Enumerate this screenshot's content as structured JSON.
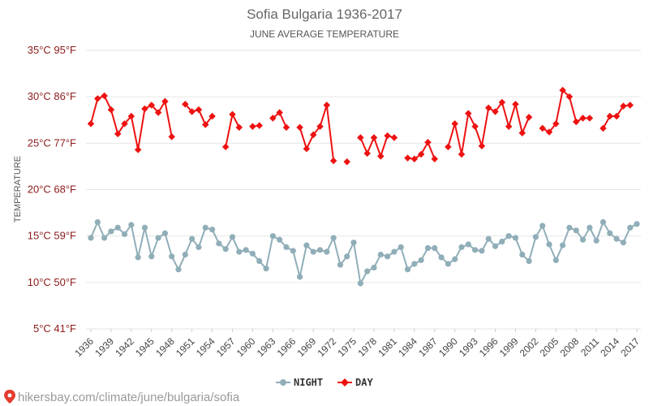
{
  "page": {
    "source_text": "hikersbay.com/climate/june/bulgaria/sofia"
  },
  "colors": {
    "day": "#ee1111",
    "night": "#90aeb8",
    "grid": "#e6e6e6",
    "ytick": "#8b1a1a",
    "pin": "#e33b2e"
  },
  "legend": [
    {
      "name": "NIGHT",
      "color": "#90aeb8",
      "marker": "circle"
    },
    {
      "name": "DAY",
      "color": "#ee1111",
      "marker": "diamond"
    }
  ],
  "chart_data": {
    "type": "line",
    "title": "Sofia Bulgaria 1936-2017",
    "subtitle": "JUNE AVERAGE TEMPERATURE",
    "ylabel": "TEMPERATURE",
    "xlabel": "",
    "ylim": [
      5,
      35
    ],
    "grid": true,
    "legend_position": "bottom-center",
    "y_ticks": [
      {
        "value": 5,
        "label": "5°C 41°F"
      },
      {
        "value": 10,
        "label": "10°C 50°F"
      },
      {
        "value": 15,
        "label": "15°C 59°F"
      },
      {
        "value": 20,
        "label": "20°C 68°F"
      },
      {
        "value": 25,
        "label": "25°C 77°F"
      },
      {
        "value": 30,
        "label": "30°C 86°F"
      },
      {
        "value": 35,
        "label": "35°C 95°F"
      }
    ],
    "x_tick_labels": [
      "1936",
      "1939",
      "1942",
      "1945",
      "1948",
      "1951",
      "1954",
      "1957",
      "1960",
      "1963",
      "1966",
      "1969",
      "1972",
      "1975",
      "1978",
      "1981",
      "1984",
      "1987",
      "1990",
      "1993",
      "1996",
      "1999",
      "2002",
      "2005",
      "2008",
      "2011",
      "2014",
      "2017"
    ],
    "x": [
      1936,
      1937,
      1938,
      1939,
      1940,
      1941,
      1942,
      1943,
      1944,
      1945,
      1946,
      1947,
      1948,
      1949,
      1950,
      1951,
      1952,
      1953,
      1954,
      1955,
      1956,
      1957,
      1958,
      1959,
      1960,
      1961,
      1962,
      1963,
      1964,
      1965,
      1966,
      1967,
      1968,
      1969,
      1970,
      1971,
      1972,
      1973,
      1974,
      1975,
      1976,
      1977,
      1978,
      1979,
      1980,
      1981,
      1982,
      1983,
      1984,
      1985,
      1986,
      1987,
      1988,
      1989,
      1990,
      1991,
      1992,
      1993,
      1994,
      1995,
      1996,
      1997,
      1998,
      1999,
      2000,
      2001,
      2002,
      2003,
      2004,
      2005,
      2006,
      2007,
      2008,
      2009,
      2010,
      2011,
      2012,
      2013,
      2014,
      2015,
      2016,
      2017
    ],
    "series": [
      {
        "name": "DAY",
        "color": "#ee1111",
        "marker": "diamond",
        "values": [
          27.1,
          29.8,
          30.1,
          28.6,
          26.0,
          27.1,
          27.9,
          24.3,
          28.7,
          29.1,
          28.3,
          29.5,
          25.7,
          null,
          29.2,
          28.4,
          28.6,
          27.0,
          27.9,
          null,
          24.6,
          28.1,
          26.7,
          null,
          26.8,
          26.9,
          null,
          27.7,
          28.3,
          26.7,
          null,
          26.7,
          24.4,
          25.9,
          26.8,
          29.1,
          23.1,
          null,
          23.0,
          null,
          25.6,
          23.9,
          25.6,
          23.6,
          25.8,
          25.6,
          null,
          23.4,
          23.3,
          23.8,
          25.1,
          23.3,
          null,
          24.6,
          27.1,
          23.8,
          28.2,
          26.8,
          24.7,
          28.8,
          28.4,
          29.4,
          26.8,
          29.2,
          26.1,
          27.8,
          null,
          26.6,
          26.2,
          27.1,
          30.7,
          30.0,
          27.3,
          27.7,
          27.7,
          null,
          26.6,
          27.9,
          27.9,
          29.0,
          29.1,
          null
        ]
      },
      {
        "name": "NIGHT",
        "color": "#90aeb8",
        "marker": "circle",
        "values": [
          14.8,
          16.5,
          14.8,
          15.5,
          15.9,
          15.2,
          16.2,
          12.7,
          15.9,
          12.8,
          14.8,
          15.3,
          12.8,
          11.4,
          13.0,
          14.7,
          13.8,
          15.9,
          15.7,
          14.2,
          13.6,
          14.9,
          13.3,
          13.5,
          13.1,
          12.3,
          11.5,
          15.0,
          14.6,
          13.8,
          13.4,
          10.6,
          14.0,
          13.3,
          13.5,
          13.3,
          14.8,
          11.9,
          12.8,
          14.3,
          9.9,
          11.2,
          11.6,
          13.0,
          12.8,
          13.3,
          13.8,
          11.4,
          12.0,
          12.4,
          13.7,
          13.7,
          12.7,
          12.0,
          12.5,
          13.8,
          14.1,
          13.5,
          13.4,
          14.7,
          13.9,
          14.4,
          15.0,
          14.8,
          13.0,
          12.3,
          14.9,
          16.1,
          14.1,
          12.4,
          14.0,
          15.9,
          15.6,
          14.6,
          15.9,
          14.5,
          16.5,
          15.3,
          14.7,
          14.3,
          15.9,
          16.3
        ]
      }
    ]
  }
}
